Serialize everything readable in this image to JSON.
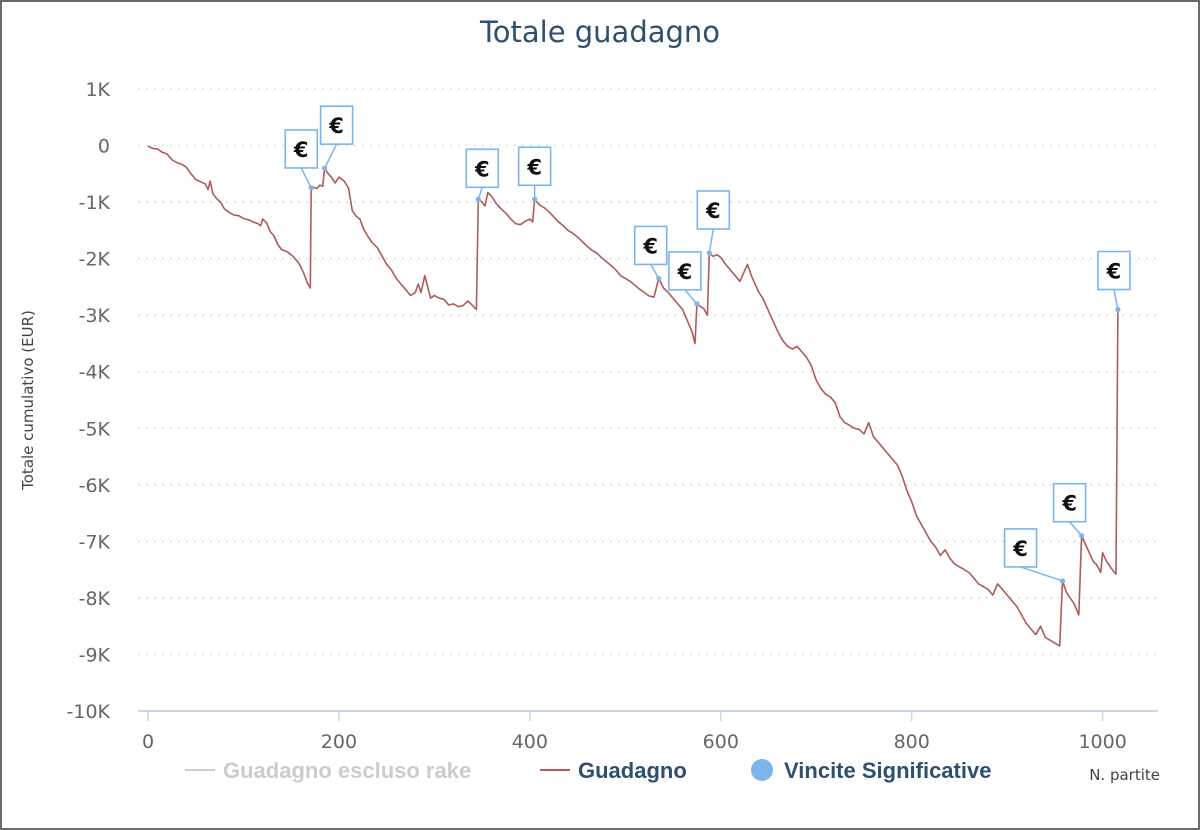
{
  "chart_data": {
    "type": "line",
    "title": "Totale guadagno",
    "xlabel": "N. partite",
    "ylabel": "Totale cumulativo (EUR)",
    "xlim": [
      0,
      1058
    ],
    "ylim": [
      -10000,
      1000
    ],
    "x_ticks": [
      {
        "value": 0,
        "label": "0"
      },
      {
        "value": 200,
        "label": "200"
      },
      {
        "value": 400,
        "label": "400"
      },
      {
        "value": 600,
        "label": "600"
      },
      {
        "value": 800,
        "label": "800"
      },
      {
        "value": 1000,
        "label": "1000"
      }
    ],
    "y_ticks": [
      {
        "value": 1000,
        "label": "1K"
      },
      {
        "value": 0,
        "label": "0"
      },
      {
        "value": -1000,
        "label": "-1K"
      },
      {
        "value": -2000,
        "label": "-2K"
      },
      {
        "value": -3000,
        "label": "-3K"
      },
      {
        "value": -4000,
        "label": "-4K"
      },
      {
        "value": -5000,
        "label": "-5K"
      },
      {
        "value": -6000,
        "label": "-6K"
      },
      {
        "value": -7000,
        "label": "-7K"
      },
      {
        "value": -8000,
        "label": "-8K"
      },
      {
        "value": -9000,
        "label": "-9K"
      },
      {
        "value": -10000,
        "label": "-10K"
      }
    ],
    "grid": true,
    "legend_position": "bottom",
    "legend": [
      {
        "name": "Guadagno escluso rake",
        "color": "#cccccc",
        "marker": "line",
        "enabled": false
      },
      {
        "name": "Guadagno",
        "color": "#b05a5a",
        "marker": "line",
        "enabled": true
      },
      {
        "name": "Vincite Significative",
        "color": "#7cb5ec",
        "marker": "circle",
        "enabled": true
      }
    ],
    "series": [
      {
        "name": "Guadagno",
        "color": "#b05a5a",
        "points": [
          [
            0,
            -10
          ],
          [
            5,
            -50
          ],
          [
            10,
            -60
          ],
          [
            15,
            -120
          ],
          [
            20,
            -150
          ],
          [
            25,
            -250
          ],
          [
            30,
            -300
          ],
          [
            35,
            -330
          ],
          [
            40,
            -380
          ],
          [
            45,
            -500
          ],
          [
            50,
            -600
          ],
          [
            55,
            -640
          ],
          [
            60,
            -680
          ],
          [
            63,
            -780
          ],
          [
            65,
            -630
          ],
          [
            68,
            -850
          ],
          [
            72,
            -940
          ],
          [
            76,
            -1000
          ],
          [
            80,
            -1120
          ],
          [
            85,
            -1180
          ],
          [
            90,
            -1230
          ],
          [
            95,
            -1240
          ],
          [
            100,
            -1290
          ],
          [
            105,
            -1310
          ],
          [
            110,
            -1350
          ],
          [
            115,
            -1380
          ],
          [
            118,
            -1420
          ],
          [
            120,
            -1300
          ],
          [
            124,
            -1360
          ],
          [
            128,
            -1520
          ],
          [
            132,
            -1600
          ],
          [
            136,
            -1750
          ],
          [
            140,
            -1840
          ],
          [
            146,
            -1880
          ],
          [
            152,
            -1960
          ],
          [
            158,
            -2080
          ],
          [
            163,
            -2250
          ],
          [
            167,
            -2430
          ],
          [
            170,
            -2520
          ],
          [
            171,
            -750
          ],
          [
            174,
            -740
          ],
          [
            177,
            -760
          ],
          [
            180,
            -700
          ],
          [
            183,
            -720
          ],
          [
            185,
            -400
          ],
          [
            188,
            -480
          ],
          [
            192,
            -560
          ],
          [
            196,
            -660
          ],
          [
            200,
            -560
          ],
          [
            205,
            -620
          ],
          [
            210,
            -750
          ],
          [
            214,
            -1150
          ],
          [
            218,
            -1250
          ],
          [
            222,
            -1300
          ],
          [
            226,
            -1480
          ],
          [
            230,
            -1600
          ],
          [
            235,
            -1720
          ],
          [
            240,
            -1800
          ],
          [
            245,
            -1950
          ],
          [
            250,
            -2100
          ],
          [
            255,
            -2200
          ],
          [
            260,
            -2350
          ],
          [
            265,
            -2450
          ],
          [
            270,
            -2550
          ],
          [
            275,
            -2650
          ],
          [
            280,
            -2600
          ],
          [
            283,
            -2450
          ],
          [
            286,
            -2600
          ],
          [
            290,
            -2300
          ],
          [
            293,
            -2500
          ],
          [
            296,
            -2700
          ],
          [
            300,
            -2650
          ],
          [
            305,
            -2700
          ],
          [
            310,
            -2720
          ],
          [
            315,
            -2820
          ],
          [
            320,
            -2800
          ],
          [
            325,
            -2850
          ],
          [
            330,
            -2830
          ],
          [
            335,
            -2750
          ],
          [
            340,
            -2830
          ],
          [
            344,
            -2900
          ],
          [
            346,
            -950
          ],
          [
            350,
            -1000
          ],
          [
            353,
            -1070
          ],
          [
            356,
            -830
          ],
          [
            360,
            -900
          ],
          [
            365,
            -1030
          ],
          [
            370,
            -1120
          ],
          [
            375,
            -1200
          ],
          [
            380,
            -1300
          ],
          [
            385,
            -1380
          ],
          [
            390,
            -1400
          ],
          [
            395,
            -1340
          ],
          [
            400,
            -1300
          ],
          [
            403,
            -1350
          ],
          [
            405,
            -950
          ],
          [
            410,
            -1050
          ],
          [
            415,
            -1100
          ],
          [
            420,
            -1170
          ],
          [
            425,
            -1260
          ],
          [
            430,
            -1350
          ],
          [
            435,
            -1420
          ],
          [
            440,
            -1500
          ],
          [
            445,
            -1550
          ],
          [
            450,
            -1620
          ],
          [
            455,
            -1700
          ],
          [
            460,
            -1780
          ],
          [
            465,
            -1850
          ],
          [
            470,
            -1900
          ],
          [
            475,
            -1980
          ],
          [
            480,
            -2050
          ],
          [
            485,
            -2120
          ],
          [
            490,
            -2200
          ],
          [
            495,
            -2300
          ],
          [
            500,
            -2350
          ],
          [
            505,
            -2400
          ],
          [
            510,
            -2470
          ],
          [
            515,
            -2540
          ],
          [
            520,
            -2600
          ],
          [
            525,
            -2660
          ],
          [
            530,
            -2680
          ],
          [
            535,
            -2350
          ],
          [
            540,
            -2520
          ],
          [
            545,
            -2600
          ],
          [
            550,
            -2700
          ],
          [
            555,
            -2800
          ],
          [
            560,
            -2900
          ],
          [
            565,
            -3100
          ],
          [
            570,
            -3300
          ],
          [
            573,
            -3500
          ],
          [
            575,
            -2800
          ],
          [
            578,
            -2840
          ],
          [
            582,
            -2880
          ],
          [
            586,
            -3000
          ],
          [
            588,
            -1900
          ],
          [
            592,
            -1960
          ],
          [
            596,
            -1930
          ],
          [
            600,
            -1980
          ],
          [
            605,
            -2100
          ],
          [
            610,
            -2200
          ],
          [
            615,
            -2300
          ],
          [
            620,
            -2400
          ],
          [
            624,
            -2250
          ],
          [
            628,
            -2100
          ],
          [
            632,
            -2300
          ],
          [
            636,
            -2450
          ],
          [
            640,
            -2600
          ],
          [
            644,
            -2700
          ],
          [
            648,
            -2850
          ],
          [
            652,
            -3000
          ],
          [
            656,
            -3150
          ],
          [
            660,
            -3300
          ],
          [
            665,
            -3450
          ],
          [
            670,
            -3550
          ],
          [
            675,
            -3600
          ],
          [
            680,
            -3550
          ],
          [
            685,
            -3650
          ],
          [
            690,
            -3750
          ],
          [
            695,
            -3900
          ],
          [
            700,
            -4150
          ],
          [
            705,
            -4300
          ],
          [
            710,
            -4400
          ],
          [
            715,
            -4450
          ],
          [
            720,
            -4550
          ],
          [
            725,
            -4800
          ],
          [
            730,
            -4900
          ],
          [
            735,
            -4950
          ],
          [
            740,
            -5000
          ],
          [
            745,
            -5020
          ],
          [
            750,
            -5100
          ],
          [
            755,
            -4900
          ],
          [
            760,
            -5150
          ],
          [
            765,
            -5250
          ],
          [
            770,
            -5350
          ],
          [
            775,
            -5450
          ],
          [
            780,
            -5550
          ],
          [
            785,
            -5650
          ],
          [
            790,
            -5850
          ],
          [
            795,
            -6100
          ],
          [
            800,
            -6300
          ],
          [
            805,
            -6550
          ],
          [
            810,
            -6700
          ],
          [
            815,
            -6850
          ],
          [
            820,
            -7000
          ],
          [
            825,
            -7100
          ],
          [
            830,
            -7250
          ],
          [
            835,
            -7150
          ],
          [
            840,
            -7300
          ],
          [
            845,
            -7400
          ],
          [
            850,
            -7450
          ],
          [
            855,
            -7500
          ],
          [
            860,
            -7550
          ],
          [
            865,
            -7650
          ],
          [
            870,
            -7750
          ],
          [
            875,
            -7800
          ],
          [
            880,
            -7850
          ],
          [
            885,
            -7950
          ],
          [
            890,
            -7750
          ],
          [
            895,
            -7850
          ],
          [
            900,
            -7950
          ],
          [
            905,
            -8050
          ],
          [
            910,
            -8150
          ],
          [
            915,
            -8300
          ],
          [
            920,
            -8450
          ],
          [
            925,
            -8550
          ],
          [
            930,
            -8650
          ],
          [
            935,
            -8500
          ],
          [
            940,
            -8700
          ],
          [
            945,
            -8750
          ],
          [
            950,
            -8800
          ],
          [
            955,
            -8850
          ],
          [
            958,
            -7700
          ],
          [
            962,
            -7900
          ],
          [
            966,
            -8000
          ],
          [
            970,
            -8100
          ],
          [
            975,
            -8300
          ],
          [
            978,
            -6900
          ],
          [
            982,
            -7050
          ],
          [
            986,
            -7200
          ],
          [
            990,
            -7350
          ],
          [
            994,
            -7420
          ],
          [
            998,
            -7550
          ],
          [
            1000,
            -7200
          ],
          [
            1004,
            -7350
          ],
          [
            1006,
            -7400
          ],
          [
            1010,
            -7500
          ],
          [
            1014,
            -7580
          ],
          [
            1016,
            -2900
          ]
        ]
      },
      {
        "name": "Vincite Significative",
        "color": "#7cb5ec",
        "type": "flags",
        "flag_label": "€",
        "points": [
          [
            171,
            -750
          ],
          [
            185,
            -400
          ],
          [
            346,
            -950
          ],
          [
            405,
            -950
          ],
          [
            535,
            -2350
          ],
          [
            575,
            -2800
          ],
          [
            588,
            -1900
          ],
          [
            958,
            -7700
          ],
          [
            978,
            -6900
          ],
          [
            1016,
            -2900
          ]
        ]
      }
    ]
  }
}
